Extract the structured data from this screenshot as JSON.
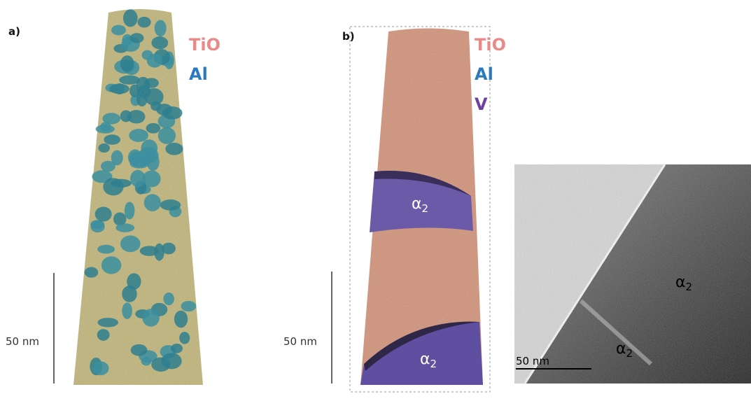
{
  "panels": [
    {
      "label": "a)",
      "legend": [
        "TiO",
        "Al"
      ],
      "scale_bar": "50 nm"
    },
    {
      "label": "b)",
      "legend": [
        "TiO",
        "Al",
        "V"
      ],
      "scale_bar": "50 nm",
      "phase_labels": [
        {
          "symbol": "α",
          "subscript": "2"
        },
        {
          "symbol": "α",
          "subscript": "2"
        }
      ]
    },
    {
      "scale_bar": "50 nm",
      "phase_labels": [
        {
          "symbol": "α",
          "subscript": "2"
        },
        {
          "symbol": "α",
          "subscript": "2"
        }
      ]
    }
  ]
}
